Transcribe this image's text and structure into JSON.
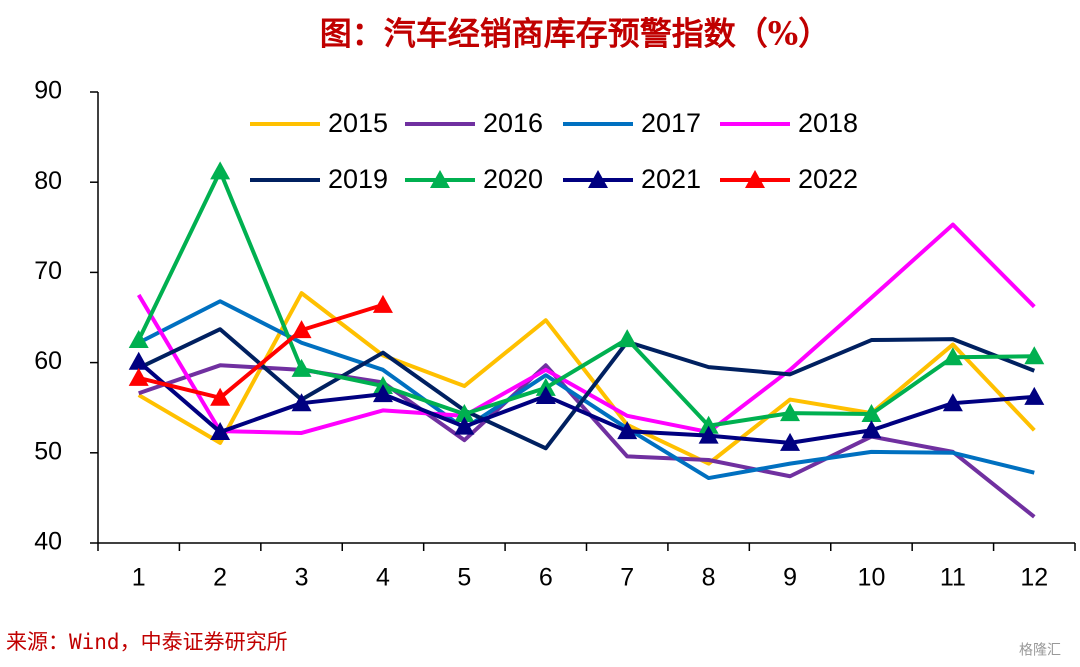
{
  "chart_data": {
    "type": "line",
    "title": "图：汽车经销商库存预警指数（%）",
    "source": "来源：Wind，中泰证券研究所",
    "watermark": "格隆汇",
    "categories": [
      "1",
      "2",
      "3",
      "4",
      "5",
      "6",
      "7",
      "8",
      "9",
      "10",
      "11",
      "12"
    ],
    "ylim": [
      40,
      90
    ],
    "yticks": [
      40,
      50,
      60,
      70,
      80,
      90
    ],
    "series": [
      {
        "name": "2015",
        "color": "#ffc000",
        "marker": "none",
        "values": [
          56.4,
          51.1,
          67.7,
          60.8,
          57.4,
          64.7,
          53.1,
          48.8,
          55.9,
          54.4,
          62.0,
          52.5
        ]
      },
      {
        "name": "2016",
        "color": "#7030a0",
        "marker": "none",
        "values": [
          56.6,
          59.7,
          59.2,
          57.8,
          51.4,
          59.7,
          49.6,
          49.2,
          47.4,
          51.8,
          50.1,
          42.9
        ]
      },
      {
        "name": "2017",
        "color": "#0070c0",
        "marker": "none",
        "values": [
          62.2,
          66.8,
          62.2,
          59.2,
          52.7,
          58.6,
          52.7,
          47.2,
          48.8,
          50.1,
          50.0,
          47.8
        ]
      },
      {
        "name": "2018",
        "color": "#ff00ff",
        "marker": "none",
        "values": [
          67.5,
          52.4,
          52.2,
          54.7,
          54.1,
          59.2,
          54.1,
          52.3,
          59.2,
          67.2,
          75.3,
          66.2
        ]
      },
      {
        "name": "2019",
        "color": "#002060",
        "marker": "none",
        "values": [
          59.4,
          63.7,
          55.9,
          61.1,
          54.7,
          50.5,
          62.3,
          59.5,
          58.7,
          62.5,
          62.6,
          59.1
        ]
      },
      {
        "name": "2020",
        "color": "#00b050",
        "marker": "triangle",
        "values": [
          62.5,
          81.2,
          59.3,
          57.4,
          54.3,
          57.2,
          62.6,
          53.0,
          54.4,
          54.3,
          60.6,
          60.7
        ]
      },
      {
        "name": "2021",
        "color": "#000080",
        "marker": "triangle",
        "values": [
          60.1,
          52.3,
          55.5,
          56.5,
          52.9,
          56.3,
          52.4,
          51.9,
          51.1,
          52.5,
          55.5,
          56.2
        ]
      },
      {
        "name": "2022",
        "color": "#ff0000",
        "marker": "triangle",
        "values": [
          58.3,
          56.1,
          63.6,
          66.4,
          null,
          null,
          null,
          null,
          null,
          null,
          null,
          null
        ]
      }
    ]
  }
}
